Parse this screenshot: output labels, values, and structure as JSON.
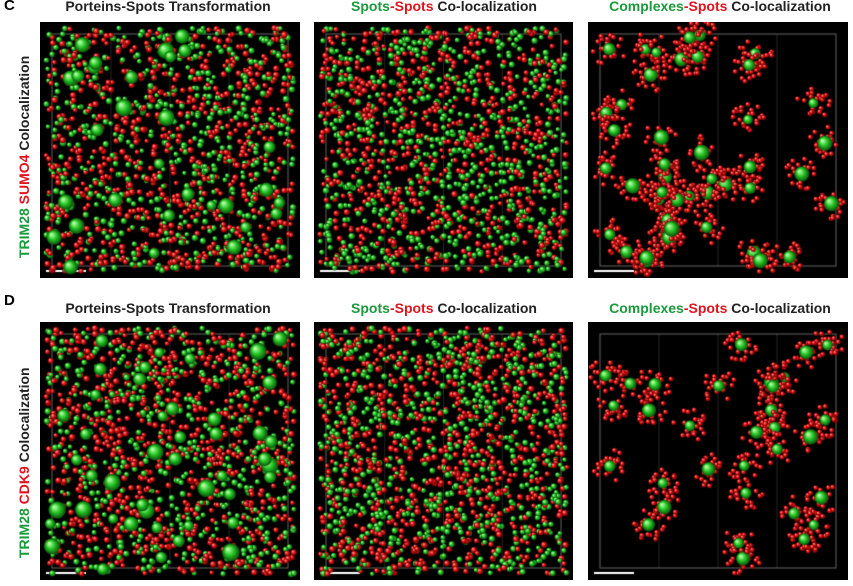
{
  "panels": {
    "C": {
      "letter": "C",
      "row_label": {
        "green": "TRIM28",
        "red": "SUMO4",
        "rest": "Colocalization"
      }
    },
    "D": {
      "letter": "D",
      "row_label": {
        "green": "TRIM28",
        "red": "CDK9",
        "rest": "Colocalization"
      }
    }
  },
  "titles": {
    "t1": "Porteins-Spots Transformation",
    "t2": {
      "green": "Spots",
      "sep": "-",
      "red": "Spots",
      "rest": " Co-localization"
    },
    "t3": {
      "green": "Complexes",
      "sep": "-",
      "red": "Spots",
      "rest": " Co-localization"
    }
  },
  "colors": {
    "green": "#22c022",
    "red": "#e01010",
    "background": "#000000"
  }
}
